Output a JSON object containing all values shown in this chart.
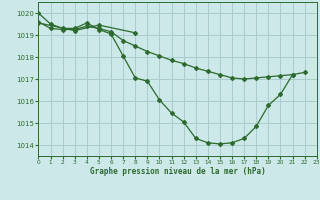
{
  "title": "Graphe pression niveau de la mer (hPa)",
  "background_color": "#cce8e8",
  "grid_color": "#aacccc",
  "line_color": "#2d6a2d",
  "xlim": [
    0,
    23
  ],
  "ylim": [
    1013.5,
    1020.5
  ],
  "yticks": [
    1014,
    1015,
    1016,
    1017,
    1018,
    1019,
    1020
  ],
  "xticks": [
    0,
    1,
    2,
    3,
    4,
    5,
    6,
    7,
    8,
    9,
    10,
    11,
    12,
    13,
    14,
    15,
    16,
    17,
    18,
    19,
    20,
    21,
    22,
    23
  ],
  "s1": [
    1020.0,
    null,
    null,
    null,
    null,
    null,
    null,
    null,
    null,
    null,
    null,
    null,
    null,
    null,
    null,
    null,
    null,
    null,
    null,
    null,
    null,
    null,
    null,
    null
  ],
  "s2_x": [
    0,
    1,
    2,
    3,
    4,
    5,
    6,
    7,
    8,
    9,
    10,
    11,
    12,
    13,
    14,
    15,
    16,
    17,
    18,
    19,
    20,
    21,
    22
  ],
  "s2_y": [
    1020.0,
    1019.5,
    1019.3,
    1019.3,
    1019.55,
    1019.25,
    1019.05,
    1018.05,
    1017.05,
    1016.9,
    1016.05,
    1015.45,
    1015.05,
    1014.3,
    1014.1,
    1014.05,
    1014.1,
    1014.3,
    1014.85,
    1015.8,
    1016.3,
    1017.2,
    1017.3
  ],
  "s3_x": [
    0,
    1,
    2,
    3,
    4,
    5,
    6,
    7,
    8,
    9,
    10,
    11,
    12,
    13,
    14,
    15,
    16,
    17,
    18,
    19,
    20,
    21,
    22
  ],
  "s3_y": [
    1019.6,
    1019.3,
    1019.25,
    1019.25,
    1019.4,
    1019.3,
    1019.15,
    1018.75,
    1018.5,
    1018.25,
    1018.05,
    1017.85,
    1017.7,
    1017.5,
    1017.35,
    1017.2,
    1017.05,
    1017.0,
    1017.05,
    1017.1,
    1017.15,
    1017.2,
    null
  ],
  "s4_x": [
    0,
    1,
    2,
    3,
    4,
    5,
    6,
    7,
    8,
    9,
    10,
    11,
    12,
    13,
    14,
    15,
    16,
    17,
    18,
    19,
    20,
    21,
    22
  ],
  "s4_y": [
    1019.55,
    null,
    null,
    1019.2,
    null,
    1019.45,
    null,
    null,
    1019.1,
    null,
    null,
    null,
    null,
    null,
    null,
    null,
    null,
    null,
    null,
    null,
    null,
    null,
    null
  ]
}
